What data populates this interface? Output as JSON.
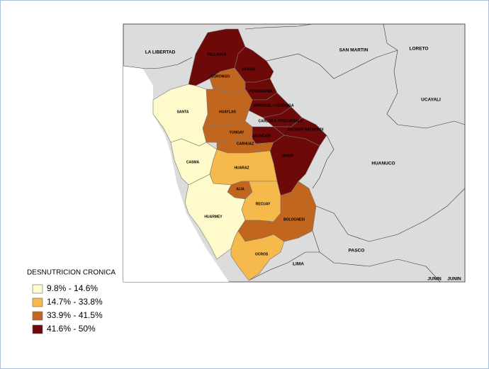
{
  "legend": {
    "title": "DESNUTRICION  CRONICA",
    "items": [
      {
        "label": "9.8% - 14.6%",
        "color": "#fffacb"
      },
      {
        "label": "14.7% - 33.8%",
        "color": "#f6b94b"
      },
      {
        "label": "33.9% - 41.5%",
        "color": "#c0661e"
      },
      {
        "label": "41.6% - 50%",
        "color": "#6e0909"
      }
    ]
  },
  "provinces": [
    {
      "name": "PALLASCA",
      "color": "#6e0909"
    },
    {
      "name": "SIHUAS",
      "color": "#6e0909"
    },
    {
      "name": "CORONGO",
      "color": "#c0661e"
    },
    {
      "name": "POMABAMBA",
      "color": "#6e0909"
    },
    {
      "name": "MARISCAL LUZURIAGA",
      "color": "#6e0909"
    },
    {
      "name": "HUAYLAS",
      "color": "#c0661e"
    },
    {
      "name": "CARLOS F. FITZCARRALD",
      "color": "#6e0909"
    },
    {
      "name": "ANTONIO RAYMONDI",
      "color": "#6e0909"
    },
    {
      "name": "YUNGAY",
      "color": "#c0661e"
    },
    {
      "name": "ASUNCION",
      "color": "#6e0909"
    },
    {
      "name": "CARHUAZ",
      "color": "#c0661e"
    },
    {
      "name": "HUARI",
      "color": "#6e0909"
    },
    {
      "name": "SANTA",
      "color": "#fffacb"
    },
    {
      "name": "CASMA",
      "color": "#fffacb"
    },
    {
      "name": "HUARAZ",
      "color": "#f6b94b"
    },
    {
      "name": "AIJA",
      "color": "#c0661e"
    },
    {
      "name": "RECUAY",
      "color": "#f6b94b"
    },
    {
      "name": "HUARMEY",
      "color": "#fffacb"
    },
    {
      "name": "BOLOGNESI",
      "color": "#c0661e"
    },
    {
      "name": "OCROS",
      "color": "#f6b94b"
    }
  ],
  "neighbors": [
    "LA LIBERTAD",
    "SAN MARTIN",
    "LORETO",
    "UCAYALI",
    "HUANUCO",
    "PASCO",
    "LIMA",
    "JUNIN",
    "JUNIN"
  ]
}
